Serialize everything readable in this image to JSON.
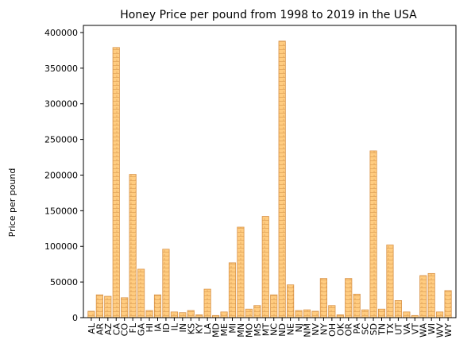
{
  "chart_data": {
    "type": "bar",
    "title": "Honey Price per pound from 1998 to 2019 in the USA",
    "xlabel": "",
    "ylabel": "Price per pound",
    "ylim": [
      0,
      410000
    ],
    "yticks": [
      0,
      50000,
      100000,
      150000,
      200000,
      250000,
      300000,
      350000,
      400000
    ],
    "grid": false,
    "legend": "none",
    "bar_fill": "#ffcc80",
    "bar_edge": "#d9944a",
    "hatch_line": "#e3a55a",
    "categories": [
      "AL",
      "AR",
      "AZ",
      "CA",
      "CO",
      "FL",
      "GA",
      "HI",
      "IA",
      "ID",
      "IL",
      "IN",
      "KS",
      "KY",
      "LA",
      "MD",
      "ME",
      "MI",
      "MN",
      "MO",
      "MS",
      "MT",
      "NC",
      "ND",
      "NE",
      "NJ",
      "NM",
      "NV",
      "NY",
      "OH",
      "OK",
      "OR",
      "PA",
      "SC",
      "SD",
      "TN",
      "TX",
      "UT",
      "VA",
      "VT",
      "WA",
      "WI",
      "WV",
      "WY"
    ],
    "values": [
      9000,
      32000,
      30000,
      379000,
      28000,
      201000,
      68000,
      10000,
      32000,
      96000,
      8000,
      7000,
      10000,
      4000,
      40000,
      3000,
      8000,
      77000,
      127000,
      12000,
      17000,
      142000,
      32000,
      388000,
      46000,
      10000,
      11000,
      9000,
      55000,
      17000,
      4000,
      55000,
      33000,
      11000,
      234000,
      12000,
      102000,
      24000,
      8000,
      3000,
      59000,
      62000,
      8000,
      38000
    ]
  }
}
